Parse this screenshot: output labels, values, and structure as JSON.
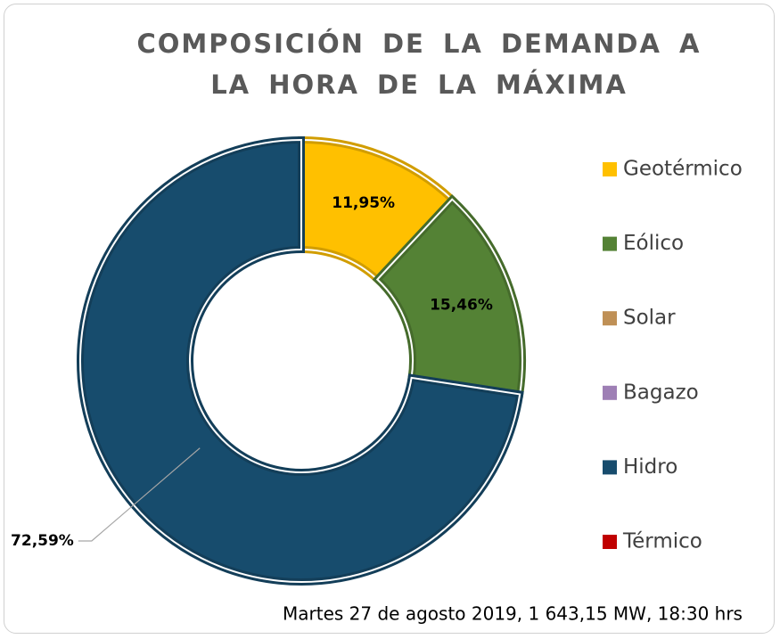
{
  "chart_data": {
    "type": "pie",
    "donut": true,
    "title": "COMPOSICIÓN DE LA DEMANDA A LA HORA DE LA MÁXIMA",
    "categories": [
      "Geotérmico",
      "Eólico",
      "Solar",
      "Bagazo",
      "Hidro",
      "Térmico"
    ],
    "values": [
      11.95,
      15.46,
      0,
      0,
      72.59,
      0
    ],
    "value_labels": [
      "11,95%",
      "15,46%",
      null,
      null,
      "72,59%",
      null
    ],
    "colors": [
      "#ffc000",
      "#548235",
      "#bf9056",
      "#9e7fb5",
      "#174c6d",
      "#c00000"
    ],
    "legend": "right",
    "annotation": "Martes 27 de agosto 2019, 1 643,15 MW, 18:30 hrs"
  }
}
